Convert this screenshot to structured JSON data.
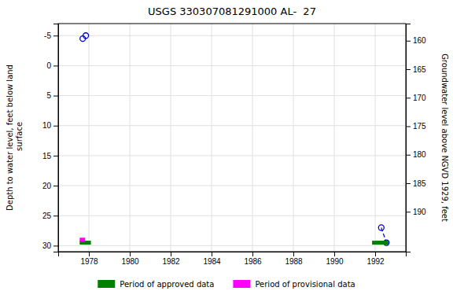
{
  "chart_data": {
    "type": "scatter",
    "title": "USGS 330307081291000 AL-  27",
    "ylabel": "Depth to water level, feet below land\n surface",
    "y2label": "Groundwater level above NGVD 1929, feet",
    "xlim": [
      1976.5,
      1993.5
    ],
    "xticks": [
      1978,
      1980,
      1982,
      1984,
      1986,
      1988,
      1990,
      1992
    ],
    "ylim": [
      31,
      -7
    ],
    "yticks": [
      -5,
      0,
      5,
      10,
      15,
      20,
      25,
      30
    ],
    "y2lim": [
      197,
      157
    ],
    "y2ticks": [
      160,
      165,
      170,
      175,
      180,
      185,
      190
    ],
    "grid": true,
    "legend": "bottom",
    "series": [
      {
        "type": "scatter",
        "color": "#0000cc",
        "marker": "circle",
        "x": [
          1977.7,
          1977.85,
          1992.3,
          1992.55
        ],
        "values": [
          -4.5,
          -5.0,
          27.0,
          29.5
        ]
      },
      {
        "type": "line",
        "color": "#0000cc",
        "line_style": "dashed",
        "x": [
          1992.3,
          1992.55
        ],
        "values": [
          27.0,
          29.5
        ]
      },
      {
        "name": "Period of approved data",
        "type": "segments",
        "color": "#008000",
        "x1": [
          1977.55,
          1991.85
        ],
        "x2": [
          1978.1,
          1992.65
        ],
        "values": [
          29.5,
          29.5
        ]
      },
      {
        "name": "Period of provisional data",
        "type": "segments",
        "color": "#ff00ff",
        "x1": [
          1977.55
        ],
        "x2": [
          1977.82
        ],
        "values": [
          29.0
        ]
      }
    ]
  }
}
